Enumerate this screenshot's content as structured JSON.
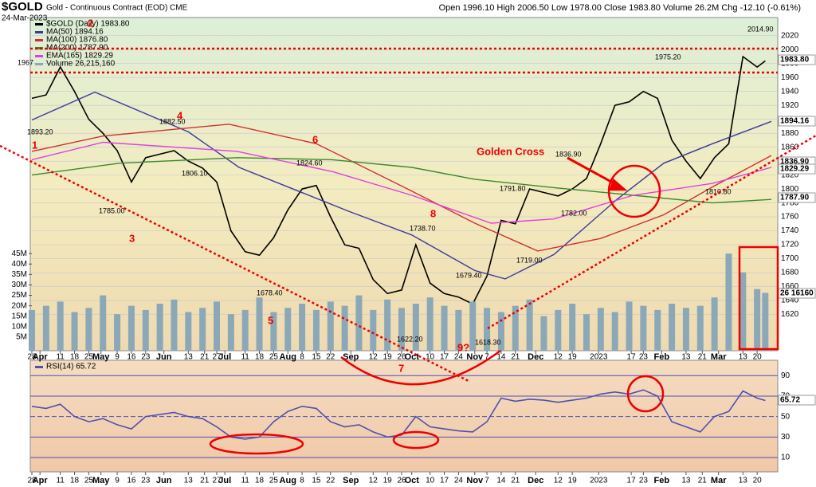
{
  "header": {
    "title": "$GOLD",
    "subtitle": "Gold - Continuous Contract (EOD) CME",
    "date": "24-Mar-2023",
    "quote": "Open 1996.10 High 2006.50 Low 1978.00 Close 1983.80 Volume 26.2M Chg -12.10 (-0.61%)"
  },
  "chart_data": [
    {
      "type": "line",
      "x": [
        0,
        7,
        14,
        21,
        28,
        35,
        42,
        49,
        56,
        63,
        70,
        77,
        84,
        91,
        98,
        105,
        112,
        119,
        126,
        133,
        140,
        147,
        154,
        161,
        168,
        175,
        182,
        189,
        196,
        203,
        210,
        217,
        224,
        231,
        238,
        245,
        252,
        259,
        266,
        273,
        280,
        287,
        294,
        301,
        308,
        315,
        322,
        329,
        336,
        343,
        350,
        357,
        361
      ],
      "series": [
        {
          "name": "$GOLD (Daily) 1983.80",
          "color": "#000000",
          "values": [
            1930,
            1935,
            1975,
            1940,
            1900,
            1880,
            1855,
            1810,
            1845,
            1850,
            1855,
            1840,
            1830,
            1810,
            1740,
            1710,
            1705,
            1730,
            1770,
            1800,
            1805,
            1760,
            1720,
            1715,
            1670,
            1650,
            1655,
            1720,
            1665,
            1650,
            1645,
            1635,
            1675,
            1755,
            1750,
            1800,
            1795,
            1790,
            1800,
            1815,
            1865,
            1920,
            1925,
            1940,
            1930,
            1870,
            1840,
            1815,
            1845,
            1865,
            1990,
            1975,
            1983.8
          ]
        },
        {
          "name": "MA(50) 1894.16",
          "color": "#3a3a9a",
          "x": [
            0,
            31,
            77,
            102,
            156,
            187,
            218,
            233,
            257,
            288,
            311,
            335,
            364
          ],
          "values": [
            1899,
            1939,
            1882,
            1831,
            1768,
            1734,
            1683,
            1671,
            1706,
            1785,
            1837,
            1865,
            1897
          ]
        },
        {
          "name": "MA(100) 1876.80",
          "color": "#d03030",
          "x": [
            0,
            35,
            97,
            140,
            187,
            218,
            249,
            280,
            311,
            335,
            364
          ],
          "values": [
            1854,
            1876,
            1893,
            1865,
            1797,
            1751,
            1711,
            1729,
            1763,
            1803,
            1848
          ]
        },
        {
          "name": "MA(200) 1787.90",
          "color": "#3a8a2a",
          "x": [
            0,
            43,
            101,
            148,
            187,
            218,
            257,
            296,
            335,
            364
          ],
          "values": [
            1820,
            1837,
            1845,
            1842,
            1831,
            1814,
            1802,
            1791,
            1780,
            1785
          ]
        },
        {
          "name": "EMA(165) 1829.29",
          "color": "#e040e0",
          "x": [
            0,
            35,
            101,
            148,
            187,
            226,
            257,
            296,
            335,
            364
          ],
          "values": [
            1842,
            1867,
            1854,
            1825,
            1791,
            1751,
            1757,
            1791,
            1808,
            1831
          ]
        },
        {
          "name": "Volume 26,215,160",
          "color": "#8aa8b8",
          "axis": "y2",
          "values": [
            18,
            20,
            22,
            17,
            19,
            25,
            16,
            20,
            18,
            21,
            23,
            17,
            19,
            22,
            16,
            18,
            24,
            17,
            19,
            21,
            18,
            22,
            20,
            25,
            18,
            23,
            19,
            21,
            24,
            20,
            18,
            22,
            19,
            17,
            20,
            23,
            15,
            18,
            21,
            16,
            19,
            17,
            22,
            20,
            18,
            21,
            19,
            20,
            24,
            45,
            36,
            28,
            26.2
          ]
        }
      ],
      "xlim": [
        0,
        364
      ],
      "xticks": [
        {
          "value": 0,
          "label": "28"
        },
        {
          "value": 4,
          "label": "Apr"
        },
        {
          "value": 14,
          "label": "11"
        },
        {
          "value": 21,
          "label": "18"
        },
        {
          "value": 28,
          "label": "25"
        },
        {
          "value": 34,
          "label": "May"
        },
        {
          "value": 42,
          "label": "9"
        },
        {
          "value": 49,
          "label": "16"
        },
        {
          "value": 56,
          "label": "23"
        },
        {
          "value": 65,
          "label": "Jun"
        },
        {
          "value": 77,
          "label": "13"
        },
        {
          "value": 85,
          "label": "21"
        },
        {
          "value": 91,
          "label": "27"
        },
        {
          "value": 95,
          "label": "Jul"
        },
        {
          "value": 105,
          "label": "11"
        },
        {
          "value": 112,
          "label": "18"
        },
        {
          "value": 119,
          "label": "25"
        },
        {
          "value": 126,
          "label": "Aug"
        },
        {
          "value": 133,
          "label": "8"
        },
        {
          "value": 140,
          "label": "15"
        },
        {
          "value": 147,
          "label": "22"
        },
        {
          "value": 157,
          "label": "Sep"
        },
        {
          "value": 168,
          "label": "12"
        },
        {
          "value": 175,
          "label": "19"
        },
        {
          "value": 182,
          "label": "26"
        },
        {
          "value": 187,
          "label": "Oct"
        },
        {
          "value": 196,
          "label": "10"
        },
        {
          "value": 203,
          "label": "17"
        },
        {
          "value": 210,
          "label": "24"
        },
        {
          "value": 218,
          "label": "Nov"
        },
        {
          "value": 224,
          "label": "7"
        },
        {
          "value": 231,
          "label": "14"
        },
        {
          "value": 238,
          "label": "21"
        },
        {
          "value": 248,
          "label": "Dec"
        },
        {
          "value": 259,
          "label": "12"
        },
        {
          "value": 266,
          "label": "19"
        },
        {
          "value": 279,
          "label": "2023"
        },
        {
          "value": 295,
          "label": "17"
        },
        {
          "value": 301,
          "label": "23"
        },
        {
          "value": 310,
          "label": "Feb"
        },
        {
          "value": 322,
          "label": "13"
        },
        {
          "value": 330,
          "label": "21"
        },
        {
          "value": 338,
          "label": "Mar"
        },
        {
          "value": 350,
          "label": "13"
        },
        {
          "value": 357,
          "label": "20"
        }
      ],
      "ylim": [
        1568,
        2046
      ],
      "yticks": [
        1620,
        1640,
        1660,
        1680,
        1700,
        1720,
        1740,
        1760,
        1780,
        1800,
        1820,
        1840,
        1860,
        1880,
        1900,
        1920,
        1940,
        1960,
        1980,
        2000,
        2020
      ],
      "y2lim": [
        -1.5,
        158
      ],
      "y2ticks": [
        {
          "value": 5,
          "label": "5M"
        },
        {
          "value": 10,
          "label": "10M"
        },
        {
          "value": 15,
          "label": "15M"
        },
        {
          "value": 20,
          "label": "20M"
        },
        {
          "value": 25,
          "label": "25M"
        },
        {
          "value": 30,
          "label": "30M"
        },
        {
          "value": 35,
          "label": "35M"
        },
        {
          "value": 40,
          "label": "40M"
        },
        {
          "value": 45,
          "label": "45M"
        }
      ],
      "value_tags": [
        "1983.80",
        "1894.16",
        "1836.90",
        "1829.29",
        "1787.90",
        "26 16160"
      ],
      "annotations": [
        "1967",
        "2",
        "1893.20",
        "1882.50",
        "4",
        "1806.10",
        "1785.00",
        "3",
        "1",
        "1824.60",
        "6",
        "1678.40",
        "5",
        "1622.20",
        "1738.70",
        "8",
        "1679.40",
        "1618.30",
        "9?",
        "7",
        "1791.80",
        "1719.00",
        "1836.90",
        "1782.00",
        "Golden Cross",
        "1975.20",
        "1810.80",
        "2014.90"
      ]
    },
    {
      "type": "line",
      "x": [
        0,
        7,
        14,
        21,
        28,
        35,
        42,
        49,
        56,
        63,
        70,
        77,
        84,
        91,
        98,
        105,
        112,
        119,
        126,
        133,
        140,
        147,
        154,
        161,
        168,
        175,
        182,
        189,
        196,
        203,
        210,
        217,
        224,
        231,
        238,
        245,
        252,
        259,
        266,
        273,
        280,
        287,
        294,
        301,
        308,
        315,
        322,
        329,
        336,
        343,
        350,
        357,
        361
      ],
      "series": [
        {
          "name": "RSI(14) 65.72",
          "color": "#5050b0",
          "values": [
            60,
            58,
            62,
            50,
            45,
            48,
            42,
            38,
            50,
            52,
            54,
            50,
            48,
            40,
            30,
            28,
            30,
            45,
            55,
            60,
            58,
            45,
            40,
            42,
            35,
            30,
            32,
            50,
            40,
            38,
            36,
            35,
            45,
            68,
            65,
            67,
            66,
            64,
            66,
            68,
            72,
            74,
            72,
            76,
            70,
            45,
            40,
            35,
            50,
            55,
            75,
            68,
            65.72
          ]
        }
      ],
      "xlim": [
        0,
        364
      ],
      "ylim": [
        -4,
        105
      ],
      "yticks": [
        10,
        30,
        50,
        70,
        90
      ],
      "value_tags": [
        "65.72"
      ]
    }
  ]
}
